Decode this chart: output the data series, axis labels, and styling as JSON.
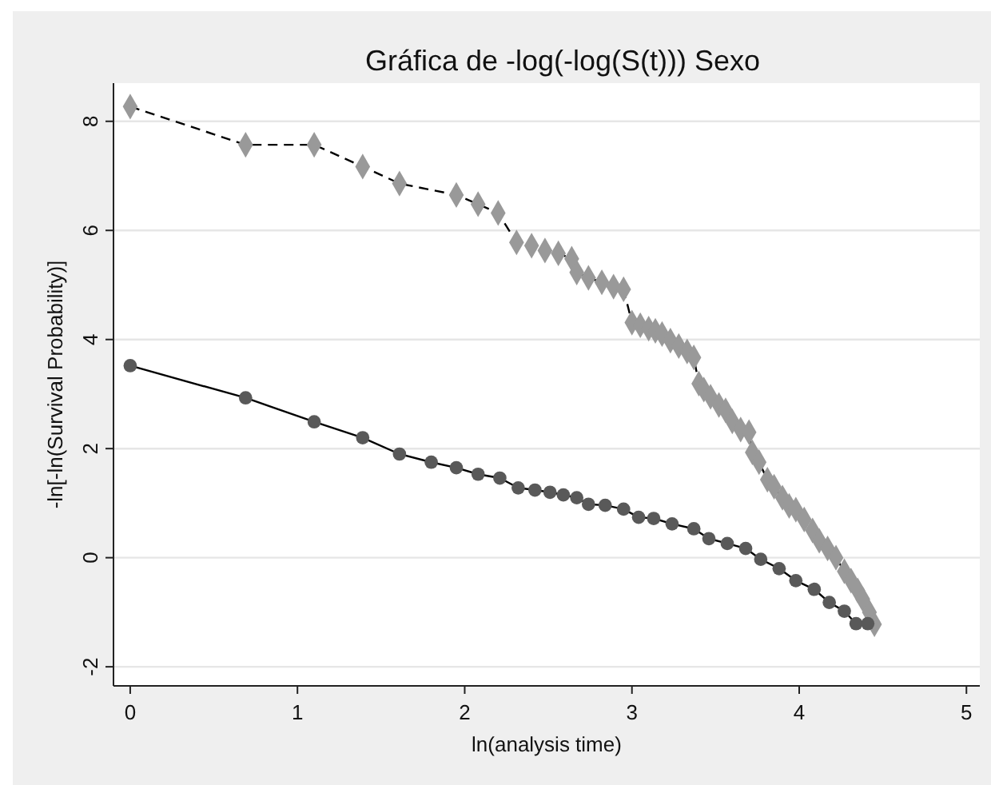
{
  "chart_data": {
    "type": "line",
    "title": "Gráfica de -log(-log(S(t))) Sexo",
    "xlabel": "ln(analysis time)",
    "ylabel": "-ln[-ln(Survival Probability)]",
    "xlim": [
      -0.1,
      5.08
    ],
    "ylim": [
      -2.35,
      8.7
    ],
    "xticks": [
      0,
      1,
      2,
      3,
      4,
      5
    ],
    "yticks": [
      -2,
      0,
      2,
      4,
      6,
      8
    ],
    "grid": "y",
    "series": [
      {
        "color": "#999999",
        "marker": "diamond",
        "line_style": "dashed",
        "x": [
          0,
          0.69,
          1.1,
          1.39,
          1.61,
          1.95,
          2.08,
          2.2,
          2.31,
          2.4,
          2.48,
          2.56,
          2.64,
          2.67,
          2.74,
          2.82,
          2.89,
          2.95,
          3.0,
          3.05,
          3.1,
          3.14,
          3.18,
          3.23,
          3.28,
          3.33,
          3.37,
          3.4,
          3.43,
          3.47,
          3.52,
          3.56,
          3.6,
          3.65,
          3.7,
          3.72,
          3.76,
          3.81,
          3.85,
          3.9,
          3.94,
          3.98,
          4.03,
          4.08,
          4.12,
          4.17,
          4.22,
          4.27,
          4.31,
          4.35,
          4.38,
          4.42,
          4.45
        ],
        "values": [
          8.27,
          7.57,
          7.57,
          7.17,
          6.86,
          6.65,
          6.48,
          6.32,
          5.78,
          5.72,
          5.63,
          5.58,
          5.48,
          5.23,
          5.13,
          5.05,
          4.97,
          4.92,
          4.31,
          4.26,
          4.2,
          4.16,
          4.1,
          3.98,
          3.88,
          3.78,
          3.67,
          3.19,
          3.08,
          2.95,
          2.8,
          2.7,
          2.5,
          2.35,
          2.3,
          1.93,
          1.75,
          1.43,
          1.3,
          1.1,
          0.95,
          0.88,
          0.7,
          0.5,
          0.31,
          0.17,
          0.0,
          -0.25,
          -0.42,
          -0.6,
          -0.76,
          -1.0,
          -1.22
        ]
      },
      {
        "color": "#595959",
        "marker": "circle",
        "line_style": "solid",
        "x": [
          0,
          0.69,
          1.1,
          1.39,
          1.61,
          1.8,
          1.95,
          2.08,
          2.21,
          2.32,
          2.42,
          2.51,
          2.59,
          2.67,
          2.74,
          2.84,
          2.95,
          3.04,
          3.13,
          3.24,
          3.37,
          3.46,
          3.57,
          3.68,
          3.77,
          3.88,
          3.98,
          4.09,
          4.18,
          4.27,
          4.34,
          4.41
        ],
        "values": [
          3.52,
          2.93,
          2.49,
          2.2,
          1.9,
          1.75,
          1.65,
          1.53,
          1.46,
          1.28,
          1.24,
          1.2,
          1.15,
          1.1,
          0.98,
          0.96,
          0.89,
          0.74,
          0.72,
          0.62,
          0.53,
          0.35,
          0.26,
          0.17,
          -0.03,
          -0.2,
          -0.42,
          -0.58,
          -0.82,
          -0.98,
          -1.21,
          -1.21
        ]
      }
    ]
  }
}
